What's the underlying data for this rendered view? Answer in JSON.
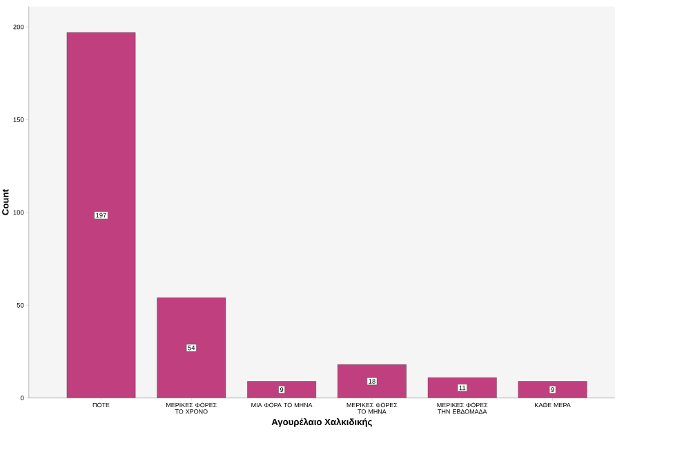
{
  "chart_data": {
    "type": "bar",
    "xlabel": "Αγουρέλαιο Χαλκιδικής",
    "ylabel": "Count",
    "categories": [
      "ΠΟΤΕ",
      "ΜΕΡΙΚΕΣ ΦΟΡΕΣ ΤΟ ΧΡΟΝΟ",
      "ΜΙΑ ΦΟΡΑ ΤΟ ΜΗΝΑ",
      "ΜΕΡΙΚΕΣ ΦΟΡΕΣ ΤΟ ΜΗΝΑ",
      "ΜΕΡΙΚΕΣ ΦΟΡΕΣ ΤΗΝ ΕΒΔΟΜΑΔΑ",
      "ΚΑΘΕ ΜΕΡΑ"
    ],
    "values": [
      197,
      54,
      9,
      18,
      11,
      9
    ],
    "color": "#c0407f",
    "ylim": [
      0,
      211
    ],
    "yticks": [
      0,
      50,
      100,
      150,
      200
    ],
    "data_labels": true
  }
}
